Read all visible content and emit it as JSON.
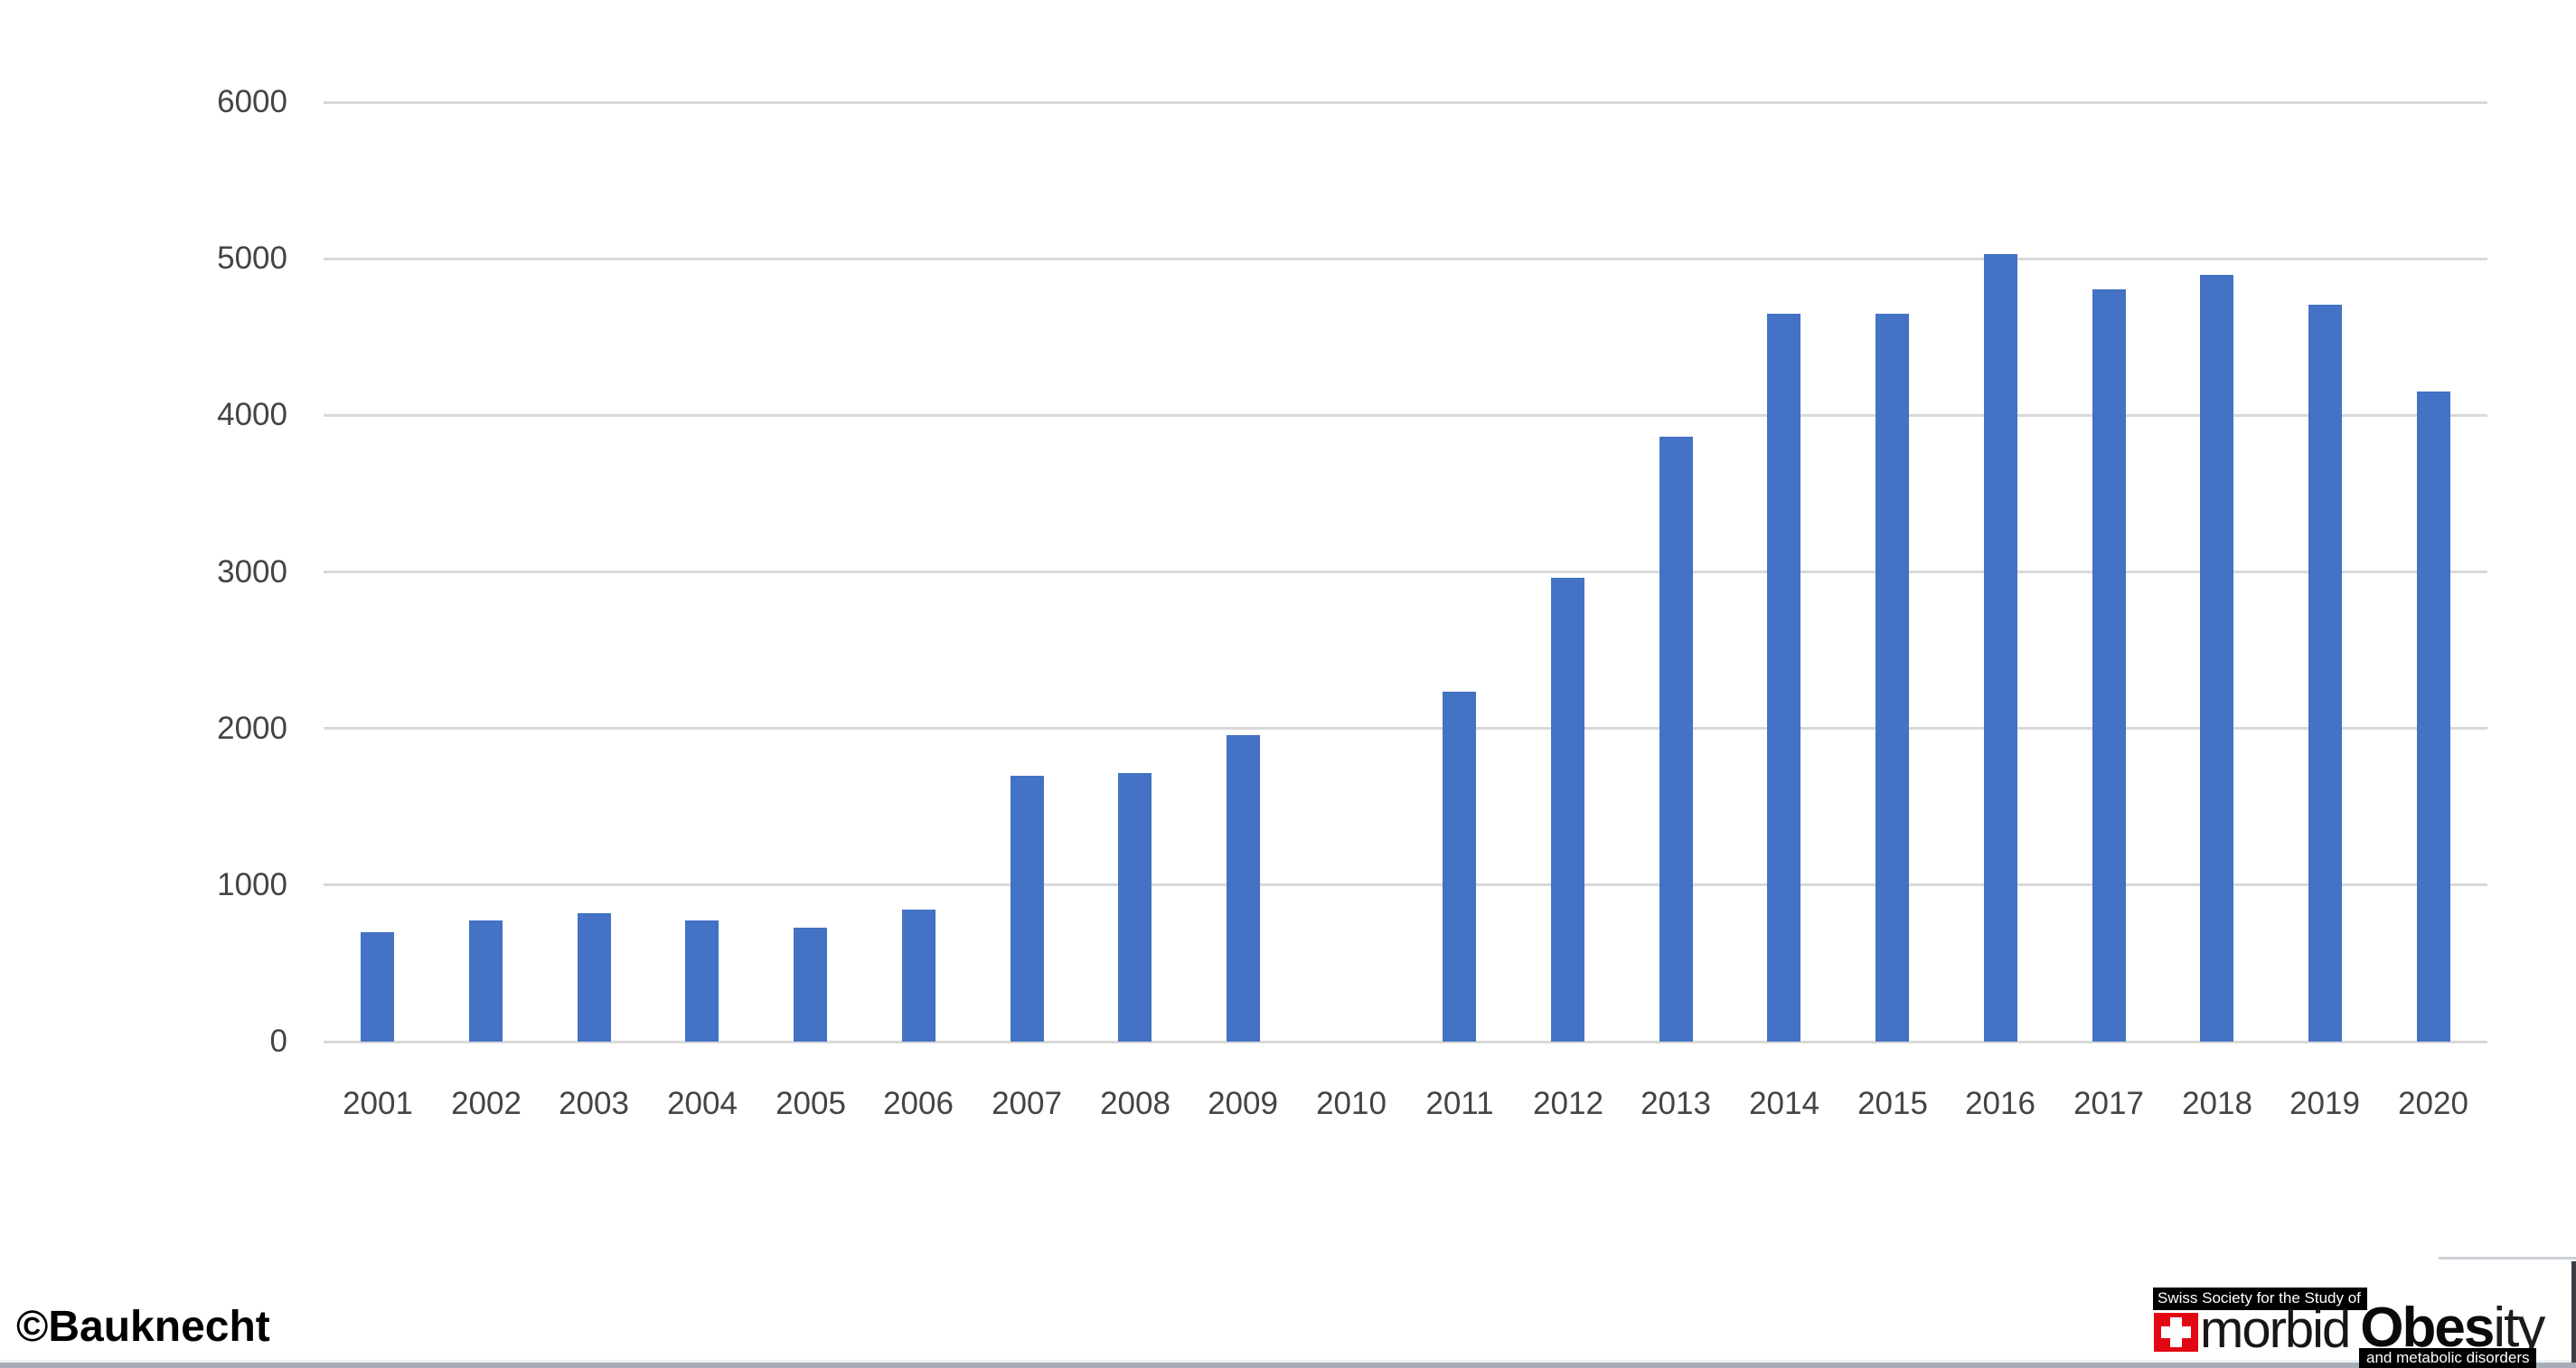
{
  "chart_data": {
    "type": "bar",
    "categories": [
      "2001",
      "2002",
      "2003",
      "2004",
      "2005",
      "2006",
      "2007",
      "2008",
      "2009",
      "2010",
      "2011",
      "2012",
      "2013",
      "2014",
      "2015",
      "2016",
      "2017",
      "2018",
      "2019",
      "2020"
    ],
    "values": [
      700,
      775,
      820,
      775,
      730,
      845,
      1695,
      1715,
      1960,
      null,
      2235,
      2960,
      3865,
      4650,
      4650,
      5030,
      4805,
      4895,
      4705,
      4150
    ],
    "ylim": [
      0,
      6000
    ],
    "ytick_step": 1000,
    "yticks": [
      "0",
      "1000",
      "2000",
      "3000",
      "4000",
      "5000",
      "6000"
    ],
    "grid": true,
    "legend_position": "none",
    "bar_color": "#4472c4",
    "gridline_color": "#d9d9d9",
    "tick_label_color": "#444444"
  },
  "watermark": {
    "text": "©Bauknecht"
  },
  "logo": {
    "line1": "Swiss Society for the Study of",
    "morbid": "morbid",
    "obesity_bold": "Obes",
    "obesity_light": "ity",
    "line3": "and metabolic disorders",
    "cross_color": "#e30613",
    "bar_bg": "#000000"
  }
}
